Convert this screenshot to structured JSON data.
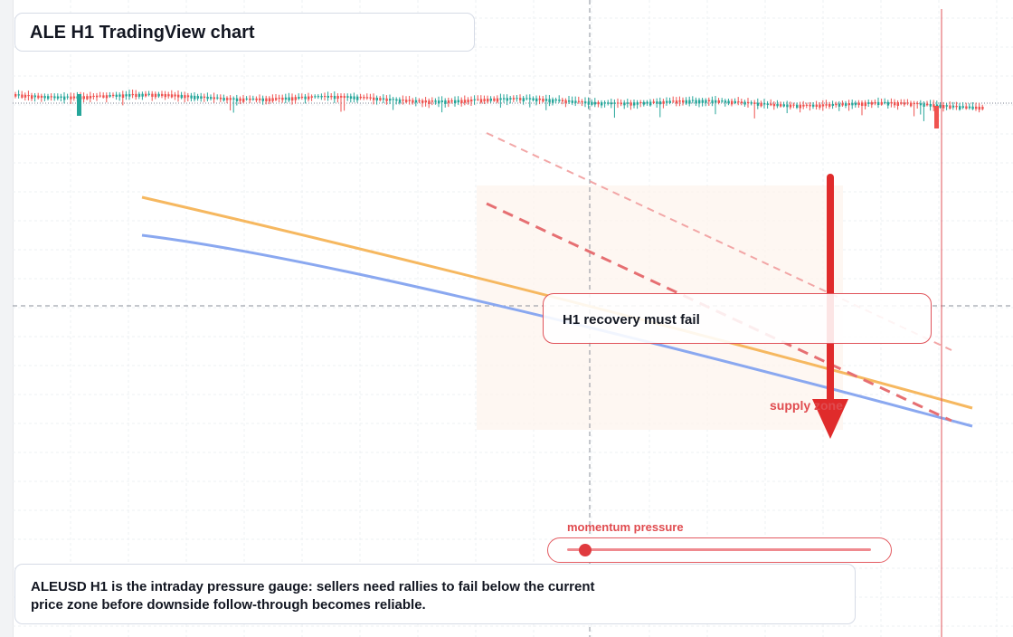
{
  "title": "ALE H1 TradingView chart",
  "callout": {
    "text": "H1 recovery must fail"
  },
  "zone_label": "supply zone",
  "gauge": {
    "label": "momentum pressure",
    "level": 0.06
  },
  "note": {
    "text": "ALEUSD H1 is the intraday pressure gauge: sellers need rallies to fail below the current price zone before downside follow-through becomes reliable."
  },
  "colors": {
    "up": "#26a69a",
    "down": "#ef5350",
    "orange_line": "#f6b860",
    "blue_line": "#8aa8f0",
    "arrow": "#e02b2b",
    "zone": "#fdf3ec",
    "grid": "#eef0f3"
  }
}
